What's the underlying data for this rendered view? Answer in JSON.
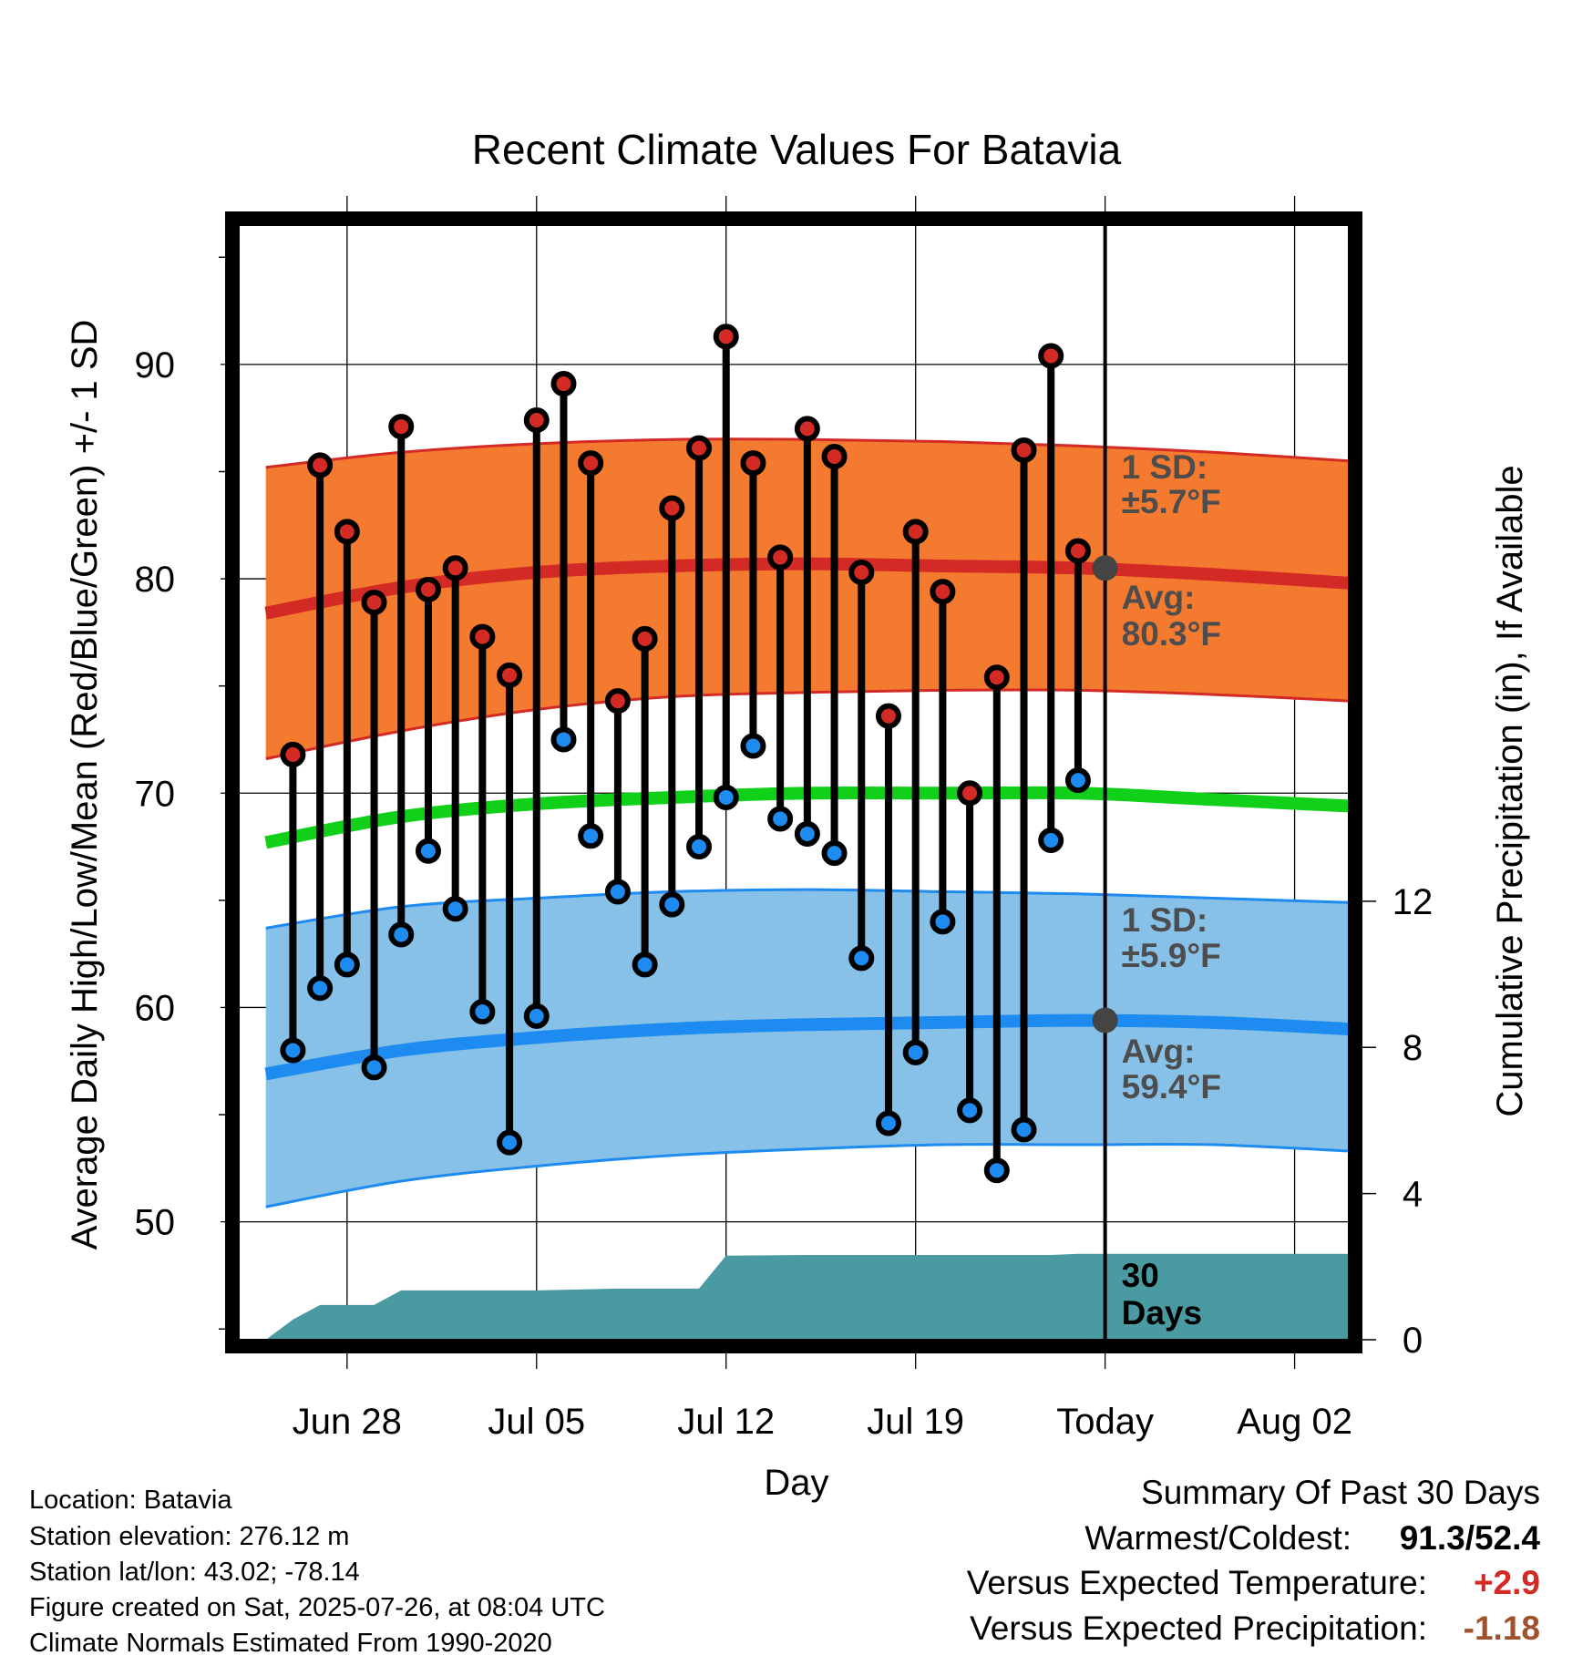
{
  "chart_data": {
    "type": "line",
    "title": "Recent Climate Values For Batavia",
    "xlabel": "Day",
    "ylabel": "Average Daily High/Low/Mean (Red/Blue/Green) +/- 1 SD",
    "y2label": "Cumulative Precipitation (in), If Available",
    "x_tick_labels": [
      "Jun 28",
      "Jul 05",
      "Jul 12",
      "Jul 19",
      "Today",
      "Aug 02"
    ],
    "x_tick_dates": [
      "2025-06-28",
      "2025-07-05",
      "2025-07-12",
      "2025-07-19",
      "2025-07-26",
      "2025-08-02"
    ],
    "xlim": [
      "2025-06-24",
      "2025-08-04"
    ],
    "ylim": [
      44.5,
      96.5
    ],
    "y_ticks": [
      50,
      60,
      70,
      80,
      90
    ],
    "y2lim": [
      0,
      30.5
    ],
    "y2_ticks": [
      0,
      4,
      8,
      12
    ],
    "grid": true,
    "today": "2025-07-26",
    "high_normal": {
      "dates": [
        "2025-06-25",
        "2025-06-30",
        "2025-07-05",
        "2025-07-10",
        "2025-07-15",
        "2025-07-20",
        "2025-07-25",
        "2025-07-30",
        "2025-08-04"
      ],
      "mean": [
        78.4,
        79.6,
        80.3,
        80.6,
        80.7,
        80.6,
        80.5,
        80.2,
        79.8
      ],
      "upper": [
        85.2,
        85.9,
        86.3,
        86.5,
        86.5,
        86.4,
        86.2,
        85.9,
        85.5
      ],
      "lower": [
        71.6,
        72.9,
        73.9,
        74.5,
        74.7,
        74.8,
        74.8,
        74.6,
        74.3
      ]
    },
    "low_normal": {
      "dates": [
        "2025-06-25",
        "2025-06-30",
        "2025-07-05",
        "2025-07-10",
        "2025-07-15",
        "2025-07-20",
        "2025-07-25",
        "2025-07-30",
        "2025-08-04"
      ],
      "mean": [
        56.9,
        58.0,
        58.6,
        59.0,
        59.2,
        59.3,
        59.4,
        59.3,
        59.0
      ],
      "upper": [
        63.7,
        64.7,
        65.1,
        65.4,
        65.5,
        65.4,
        65.3,
        65.1,
        64.9
      ],
      "lower": [
        50.7,
        51.9,
        52.6,
        53.1,
        53.4,
        53.6,
        53.6,
        53.6,
        53.3
      ]
    },
    "mean_normal": {
      "dates": [
        "2025-06-25",
        "2025-06-30",
        "2025-07-05",
        "2025-07-10",
        "2025-07-15",
        "2025-07-20",
        "2025-07-25",
        "2025-07-30",
        "2025-08-04"
      ],
      "values": [
        67.7,
        68.9,
        69.5,
        69.8,
        70.0,
        70.0,
        70.0,
        69.7,
        69.4
      ]
    },
    "observed": {
      "dates": [
        "2025-06-26",
        "2025-06-27",
        "2025-06-28",
        "2025-06-29",
        "2025-06-30",
        "2025-07-01",
        "2025-07-02",
        "2025-07-03",
        "2025-07-04",
        "2025-07-05",
        "2025-07-06",
        "2025-07-07",
        "2025-07-08",
        "2025-07-09",
        "2025-07-10",
        "2025-07-11",
        "2025-07-12",
        "2025-07-13",
        "2025-07-14",
        "2025-07-15",
        "2025-07-16",
        "2025-07-17",
        "2025-07-18",
        "2025-07-19",
        "2025-07-20",
        "2025-07-21",
        "2025-07-22",
        "2025-07-23",
        "2025-07-24",
        "2025-07-25"
      ],
      "high": [
        71.8,
        85.3,
        82.2,
        78.9,
        87.1,
        79.5,
        80.5,
        77.3,
        75.5,
        87.4,
        89.1,
        85.4,
        74.3,
        77.2,
        83.3,
        86.1,
        91.3,
        85.4,
        81.0,
        87.0,
        85.7,
        80.3,
        73.6,
        82.2,
        79.4,
        70.0,
        75.4,
        86.0,
        90.4,
        81.3
      ],
      "low": [
        58.0,
        60.9,
        62.0,
        57.2,
        63.4,
        67.3,
        64.6,
        59.8,
        53.7,
        59.6,
        72.5,
        68.0,
        65.4,
        62.0,
        64.8,
        67.5,
        69.8,
        72.2,
        68.8,
        68.1,
        67.2,
        62.3,
        54.6,
        57.9,
        64.0,
        55.2,
        52.4,
        54.3,
        67.8,
        70.6
      ]
    },
    "precip": {
      "dates": [
        "2025-06-25",
        "2025-06-26",
        "2025-06-27",
        "2025-06-28",
        "2025-06-29",
        "2025-06-30",
        "2025-07-05",
        "2025-07-08",
        "2025-07-10",
        "2025-07-11",
        "2025-07-12",
        "2025-07-15",
        "2025-07-19",
        "2025-07-24",
        "2025-07-25",
        "2025-08-04"
      ],
      "values": [
        0.0,
        0.55,
        0.95,
        0.95,
        0.95,
        1.35,
        1.35,
        1.4,
        1.4,
        1.4,
        2.3,
        2.32,
        2.32,
        2.32,
        2.35,
        2.35
      ]
    },
    "annotations": {
      "high_sd": "1 SD:",
      "high_sd_value": "±5.7°F",
      "high_avg": "Avg:",
      "high_avg_value": "80.3°F",
      "low_sd": "1 SD:",
      "low_sd_value": "±5.9°F",
      "low_avg": "Avg:",
      "low_avg_value": "59.4°F",
      "period_count": "30",
      "period_unit": "Days"
    },
    "colors": {
      "high_band": "#f47a30",
      "high_line": "#d42a25",
      "low_band": "#87c1e8",
      "low_line": "#1e8bf0",
      "mean_line": "#11d01a",
      "precip": "#4a9aa2",
      "high_dot": "#d42a25",
      "low_dot": "#1e8bf0",
      "annotation": "#4d4d4d"
    }
  },
  "meta": {
    "location": "Location: Batavia",
    "elevation": "Station elevation: 276.12 m",
    "latlon": "Station lat/lon: 43.02; -78.14",
    "created": "Figure created on Sat, 2025-07-26, at 08:04 UTC",
    "normals": "Climate Normals Estimated From 1990-2020"
  },
  "summary": {
    "title": "Summary Of Past 30 Days",
    "warmest_label": "Warmest/Coldest:",
    "warmest_value": "91.3",
    "slash": "/",
    "coldest_value": "52.4",
    "temp_label": "Versus Expected Temperature:",
    "temp_value": "+2.9",
    "temp_color": "#d42a25",
    "precip_label": "Versus Expected Precipitation:",
    "precip_value": "-1.18",
    "precip_color": "#a0522d"
  }
}
